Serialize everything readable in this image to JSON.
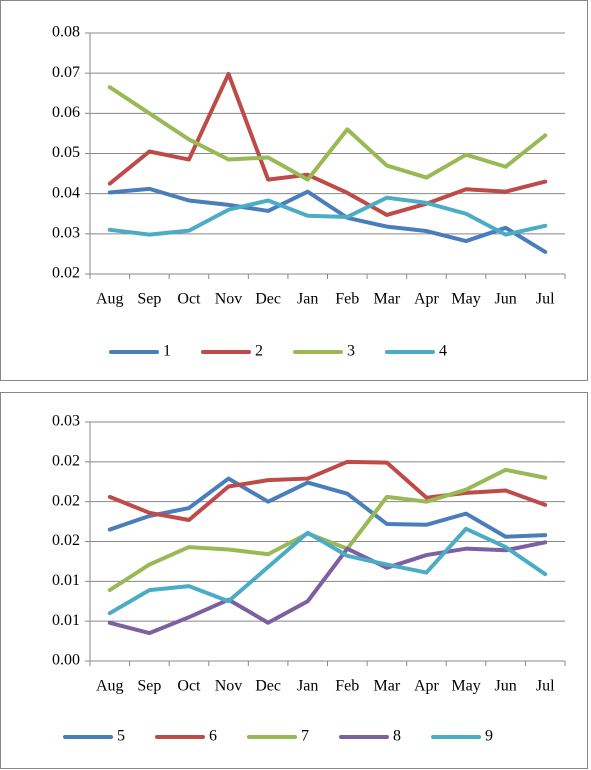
{
  "chart_data": [
    {
      "type": "line",
      "categories": [
        "Aug",
        "Sep",
        "Oct",
        "Nov",
        "Dec",
        "Jan",
        "Feb",
        "Mar",
        "Apr",
        "May",
        "Jun",
        "Jul"
      ],
      "series": [
        {
          "name": "1",
          "color": "#4a7ebb",
          "values": [
            0.0403,
            0.0412,
            0.0383,
            0.0372,
            0.0357,
            0.0405,
            0.034,
            0.0318,
            0.0307,
            0.0282,
            0.0315,
            0.0255
          ]
        },
        {
          "name": "2",
          "color": "#be4b48",
          "values": [
            0.0425,
            0.0505,
            0.0485,
            0.0698,
            0.0435,
            0.0447,
            0.0402,
            0.0347,
            0.0375,
            0.0411,
            0.0405,
            0.043
          ]
        },
        {
          "name": "3",
          "color": "#98b954",
          "values": [
            0.0665,
            0.06,
            0.0535,
            0.0485,
            0.049,
            0.0435,
            0.056,
            0.047,
            0.044,
            0.0497,
            0.0467,
            0.0545
          ]
        },
        {
          "name": "4",
          "color": "#4bacc6",
          "values": [
            0.031,
            0.0298,
            0.0308,
            0.036,
            0.0383,
            0.0345,
            0.0342,
            0.039,
            0.0377,
            0.035,
            0.0298,
            0.032
          ]
        }
      ],
      "ylim": [
        0.02,
        0.08
      ],
      "yticks": [
        0.02,
        0.03,
        0.04,
        0.05,
        0.06,
        0.07,
        0.08
      ],
      "grid": true
    },
    {
      "type": "line",
      "categories": [
        "Aug",
        "Sep",
        "Oct",
        "Nov",
        "Dec",
        "Jan",
        "Feb",
        "Mar",
        "Apr",
        "May",
        "Jun",
        "Jul"
      ],
      "series": [
        {
          "name": "5",
          "color": "#4a7ebb",
          "values": [
            0.0165,
            0.0182,
            0.0192,
            0.0229,
            0.02,
            0.0224,
            0.021,
            0.0172,
            0.0171,
            0.0185,
            0.0156,
            0.0158
          ]
        },
        {
          "name": "6",
          "color": "#be4b48",
          "values": [
            0.0206,
            0.0186,
            0.0177,
            0.0219,
            0.0227,
            0.0229,
            0.025,
            0.0249,
            0.0205,
            0.0211,
            0.0214,
            0.0196
          ]
        },
        {
          "name": "7",
          "color": "#98b954",
          "values": [
            0.0089,
            0.0121,
            0.0143,
            0.014,
            0.0134,
            0.016,
            0.0141,
            0.0206,
            0.02,
            0.0215,
            0.024,
            0.023
          ]
        },
        {
          "name": "8",
          "color": "#7d60a0",
          "values": [
            0.0048,
            0.0035,
            0.0055,
            0.0077,
            0.0048,
            0.0075,
            0.0141,
            0.0117,
            0.0133,
            0.0141,
            0.0139,
            0.0149
          ]
        },
        {
          "name": "9",
          "color": "#4bacc6",
          "values": [
            0.006,
            0.0089,
            0.0094,
            0.0075,
            0.0118,
            0.0161,
            0.0132,
            0.0121,
            0.0111,
            0.0166,
            0.0143,
            0.0109
          ]
        }
      ],
      "ylim": [
        0,
        0.03
      ],
      "yticks": [
        {
          "value": 0,
          "label": "0.00"
        },
        {
          "value": 0.005,
          "label": "0.01"
        },
        0.01,
        {
          "value": 0.015,
          "label": "0.02"
        },
        0.02,
        {
          "value": 0.025,
          "label": "0.02"
        },
        0.03
      ],
      "grid": true
    }
  ]
}
